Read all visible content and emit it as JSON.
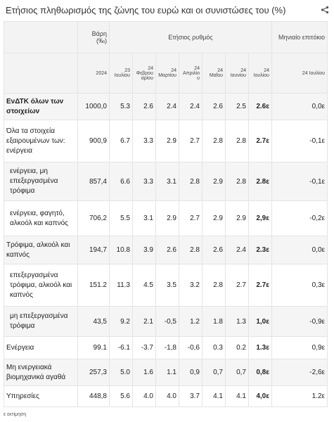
{
  "title": "Ετήσιος πληθωρισμός της ζώνης του ευρώ και οι συνιστώσες του (%)",
  "table": {
    "header": {
      "weight_label": "Βάρη (‰)",
      "rate_label": "Ετήσιος ρυθμός",
      "monthly_label": "Μηνιαίο επιτόκιο",
      "weight_year": "2024",
      "rate_periods": [
        {
          "year": "23",
          "month": "Ιουλίου"
        },
        {
          "year": "24",
          "month": "Φεβρουαρίου"
        },
        {
          "year": "24",
          "month": "Μαρτίου"
        },
        {
          "year": "24",
          "month": "Απριλίου"
        },
        {
          "year": "24",
          "month": "Μαΐου"
        },
        {
          "year": "24",
          "month": "Ιουνίου"
        },
        {
          "year": "24",
          "month": "Ιουλίου"
        }
      ],
      "monthly_period": "24 Ιουλίου"
    },
    "rows": [
      {
        "label": "ΕνΔΤΚ όλων των στοιχείων",
        "values": [
          "1000,0",
          "5.3",
          "2.6",
          "2.4",
          "2.4",
          "2.6",
          "2.5",
          "2.6ε",
          "0,0ε"
        ]
      },
      {
        "label": "Όλα τα στοιχεία εξαιρουμένων των: ενέργεια",
        "values": [
          "900,9",
          "6.7",
          "3.3",
          "2.9",
          "2.7",
          "2.8",
          "2.8",
          "2.7ε",
          "-0,1ε"
        ]
      },
      {
        "label": "ενέργεια, μη επεξεργασμένα τρόφιμα",
        "values": [
          "857,4",
          "6.6",
          "3.3",
          "3.1",
          "2.8",
          "2.9",
          "2.8",
          "2.8ε",
          "-0,1ε"
        ]
      },
      {
        "label": "ενέργεια, φαγητό, αλκοόλ και καπνός",
        "values": [
          "706,2",
          "5.5",
          "3.1",
          "2.9",
          "2.7",
          "2.9",
          "2.9",
          "2,9ε",
          "-0,2ε"
        ]
      },
      {
        "label": "Τρόφιμα, αλκοόλ και καπνός",
        "values": [
          "194,7",
          "10.8",
          "3.9",
          "2.6",
          "2.8",
          "2.6",
          "2.4",
          "2.3ε",
          "0,0ε"
        ]
      },
      {
        "label": "επεξεργασμένα τρόφιμα, αλκοόλ και καπνός",
        "values": [
          "151.2",
          "11.3",
          "4.5",
          "3.5",
          "3.2",
          "2.8",
          "2.7",
          "2.7ε",
          "0,3ε"
        ]
      },
      {
        "label": "μη επεξεργασμένα τρόφιμα",
        "values": [
          "43,5",
          "9.2",
          "2.1",
          "-0,5",
          "1.2",
          "1.8",
          "1.3",
          "1,0ε",
          "-0,9ε"
        ]
      },
      {
        "label": "Ενέργεια",
        "values": [
          "99.1",
          "-6.1",
          "-3.7",
          "-1,8",
          "-0,6",
          "0.3",
          "0.2",
          "1.3ε",
          "0,9ε"
        ]
      },
      {
        "label": "Μη ενεργειακά βιομηχανικά αγαθά",
        "values": [
          "257,3",
          "5.0",
          "1.6",
          "1.1",
          "0,9",
          "0,7",
          "0,7",
          "0,8ε",
          "-2,6ε"
        ]
      },
      {
        "label": "Υπηρεσίες",
        "values": [
          "448,8",
          "5.6",
          "4.0",
          "4.0",
          "3.7",
          "4.1",
          "4.1",
          "4,0ε",
          "1.2ε"
        ]
      }
    ]
  },
  "footnote": "ε εκτίμηση"
}
